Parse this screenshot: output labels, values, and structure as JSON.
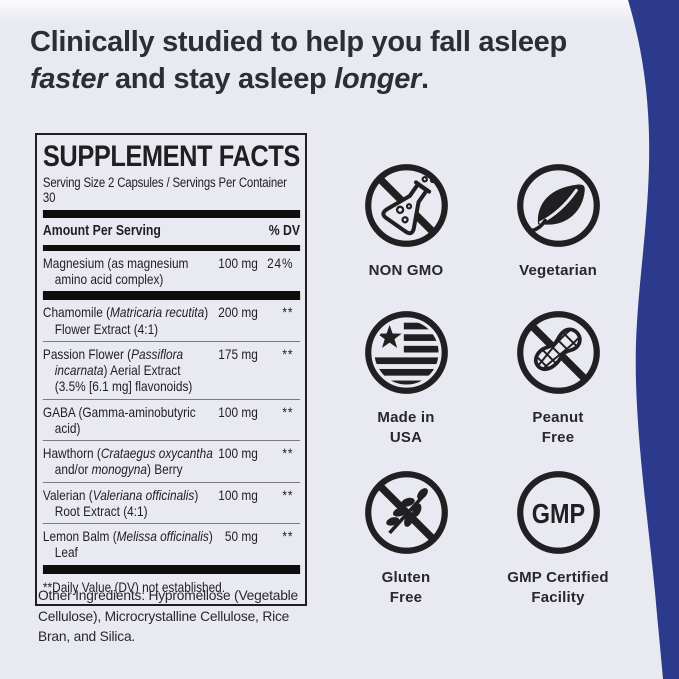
{
  "page": {
    "background": "#e9eaf1",
    "accent_blue": "#2b3a8d",
    "ink": "#1f1e21"
  },
  "headline": {
    "html": "Clinically studied to help you fall asleep <em>faster</em> and stay asleep <em>longer</em>."
  },
  "supplement_facts": {
    "title": "SUPPLEMENT FACTS",
    "serving_line": "Serving Size 2 Capsules / Servings Per Container 30",
    "columns": {
      "amount": "Amount Per Serving",
      "dv": "% DV"
    },
    "rows": [
      {
        "name_html": "Magnesium (as magnesium<br>amino acid complex)",
        "amount": "100 mg",
        "dv": "24%",
        "thick_divider_after": true
      },
      {
        "name_html": "Chamomile (<i>Matricaria recutita</i>)<br>Flower Extract (4:1)",
        "amount": "200 mg",
        "dv": "**"
      },
      {
        "name_html": "Passion Flower (<i>Passiflora</i><br><i>incarnata</i>) Aerial Extract<br>(3.5% [6.1 mg] flavonoids)",
        "amount": "175 mg",
        "dv": "**"
      },
      {
        "name_html": "GABA (Gamma-aminobutyric<br>acid)",
        "amount": "100 mg",
        "dv": "**"
      },
      {
        "name_html": "Hawthorn (<i>Crataegus oxycantha</i><br>and/or <i>monogyna</i>) Berry",
        "amount": "100 mg",
        "dv": "**"
      },
      {
        "name_html": "Valerian (<i>Valeriana officinalis</i>)<br>Root Extract (4:1)",
        "amount": "100 mg",
        "dv": "**"
      },
      {
        "name_html": "Lemon Balm (<i>Melissa officinalis</i>)<br>Leaf",
        "amount": "50 mg",
        "dv": "**",
        "thick_divider_after": true
      }
    ],
    "footnote": "**Daily Value (DV) not established."
  },
  "other_ingredients": "Other Ingredients: Hypromellose (Vegetable Cellulose), Microcrystalline Cellulose, Rice Bran, and Silica.",
  "badges": [
    {
      "label": "NON GMO",
      "icon": "non-gmo-icon"
    },
    {
      "label": "Vegetarian",
      "icon": "vegetarian-icon"
    },
    {
      "label": "Made in\nUSA",
      "icon": "made-in-usa-icon"
    },
    {
      "label": "Peanut\nFree",
      "icon": "peanut-free-icon"
    },
    {
      "label": "Gluten\nFree",
      "icon": "gluten-free-icon"
    },
    {
      "label": "GMP Certified\nFacility",
      "icon": "gmp-icon"
    }
  ]
}
